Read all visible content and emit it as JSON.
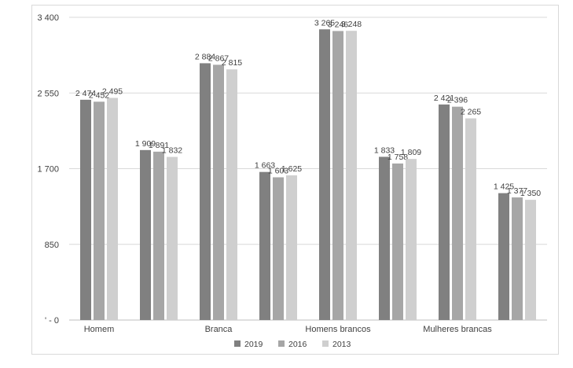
{
  "chart_data": {
    "type": "bar",
    "categories": [
      "Homem",
      "",
      "Branca",
      "",
      "Homens brancos",
      "",
      "Mulheres brancas",
      ""
    ],
    "series": [
      {
        "name": "2019",
        "color": "#808080",
        "values": [
          2474,
          1909,
          2884,
          1663,
          3265,
          1833,
          2421,
          1425
        ],
        "labels": [
          "2 474",
          "1 909",
          "2 884",
          "1 663",
          "3 265",
          "1 833",
          "2 421",
          "1 425"
        ]
      },
      {
        "name": "2016",
        "color": "#a6a6a6",
        "values": [
          2452,
          1891,
          2867,
          1603,
          3246,
          1758,
          2396,
          1377
        ],
        "labels": [
          "2 452",
          "1 891",
          "2 867",
          "1 603",
          "3 246",
          "1 758",
          "2 396",
          "1 377"
        ]
      },
      {
        "name": "2013",
        "color": "#cfcfcf",
        "values": [
          2495,
          1832,
          2815,
          1625,
          3248,
          1809,
          2265,
          1350
        ],
        "labels": [
          "2 495",
          "1 832",
          "2 815",
          "1 625",
          "3 248",
          "1 809",
          "2 265",
          "1 350"
        ]
      }
    ],
    "ylim": [
      0,
      3400
    ],
    "yticks": [
      0,
      850,
      1700,
      2550,
      3400
    ],
    "ytick_labels": [
      "' - 0",
      "850",
      "1 700",
      "2 550",
      "3 400"
    ],
    "grid": true,
    "legend_position": "bottom",
    "title": "",
    "xlabel": "",
    "ylabel": ""
  }
}
